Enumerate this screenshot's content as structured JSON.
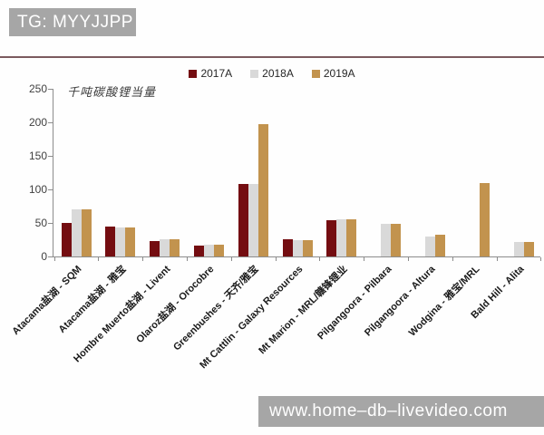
{
  "header": {
    "label": "TG: MYYJJPP"
  },
  "watermark": {
    "label": "www.home–db–livevideo.com"
  },
  "chart_data": {
    "type": "bar",
    "title": "千吨碳酸锂当量",
    "ylabel": "千吨碳酸锂当量",
    "xlabel": "",
    "ylim": [
      0,
      250
    ],
    "yticks": [
      0,
      50,
      100,
      150,
      200,
      250
    ],
    "grid": false,
    "legend_position": "top",
    "categories": [
      "Atacama盐湖 - SQM",
      "Atacama盐湖 - 雅宝",
      "Hombre Muerto盐湖 - Livent",
      "Olaroz盐湖 - Orocobre",
      "Greenbushes - 天齐/雅宝",
      "Mt Cattlin - Galaxy Resources",
      "Mt Marion - MRL/赣锋锂业",
      "Pilgangoora - Pilbara",
      "Pilgangoora - Altura",
      "Wodgina - 雅宝/MRL",
      "Bald Hill - Alita"
    ],
    "series": [
      {
        "name": "2017A",
        "color": "#740d11",
        "values": [
          50,
          44,
          23,
          16,
          108,
          26,
          54,
          0,
          0,
          0,
          0
        ]
      },
      {
        "name": "2018A",
        "color": "#d9d9d9",
        "values": [
          70,
          43,
          26,
          18,
          108,
          25,
          55,
          48,
          30,
          0,
          21
        ]
      },
      {
        "name": "2019A",
        "color": "#c2934e",
        "values": [
          70,
          43,
          26,
          18,
          197,
          25,
          55,
          48,
          32,
          110,
          22
        ]
      }
    ]
  }
}
